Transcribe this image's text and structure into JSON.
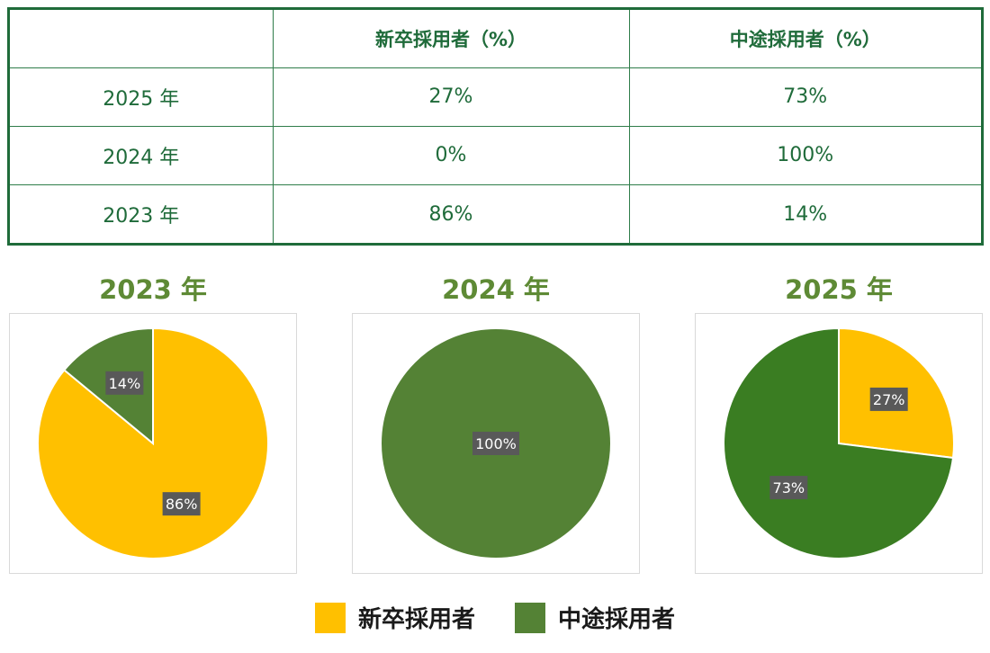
{
  "table": {
    "headers": [
      "",
      "新卒採用者（%）",
      "中途採用者（%）"
    ],
    "rows": [
      [
        "2025 年",
        "27%",
        "73%"
      ],
      [
        "2024 年",
        "0%",
        "100%"
      ],
      [
        "2023 年",
        "86%",
        "14%"
      ]
    ]
  },
  "legend": {
    "new_grad": {
      "label": "新卒採用者",
      "color": "#FFC000"
    },
    "mid_career": {
      "label": "中途採用者",
      "color": "#548235"
    }
  },
  "chart_data": [
    {
      "type": "pie",
      "title": "2023 年",
      "categories": [
        "新卒採用者",
        "中途採用者"
      ],
      "values": [
        86,
        14
      ],
      "labels": [
        "86%",
        "14%"
      ],
      "colors": [
        "#FFC000",
        "#548235"
      ]
    },
    {
      "type": "pie",
      "title": "2024 年",
      "categories": [
        "新卒採用者",
        "中途採用者"
      ],
      "values": [
        0,
        100
      ],
      "labels": [
        "",
        "100%"
      ],
      "colors": [
        "#FFC000",
        "#548235"
      ]
    },
    {
      "type": "pie",
      "title": "2025 年",
      "categories": [
        "新卒採用者",
        "中途採用者"
      ],
      "values": [
        27,
        73
      ],
      "labels": [
        "27%",
        "73%"
      ],
      "colors": [
        "#FFC000",
        "#3A7D22"
      ]
    }
  ]
}
